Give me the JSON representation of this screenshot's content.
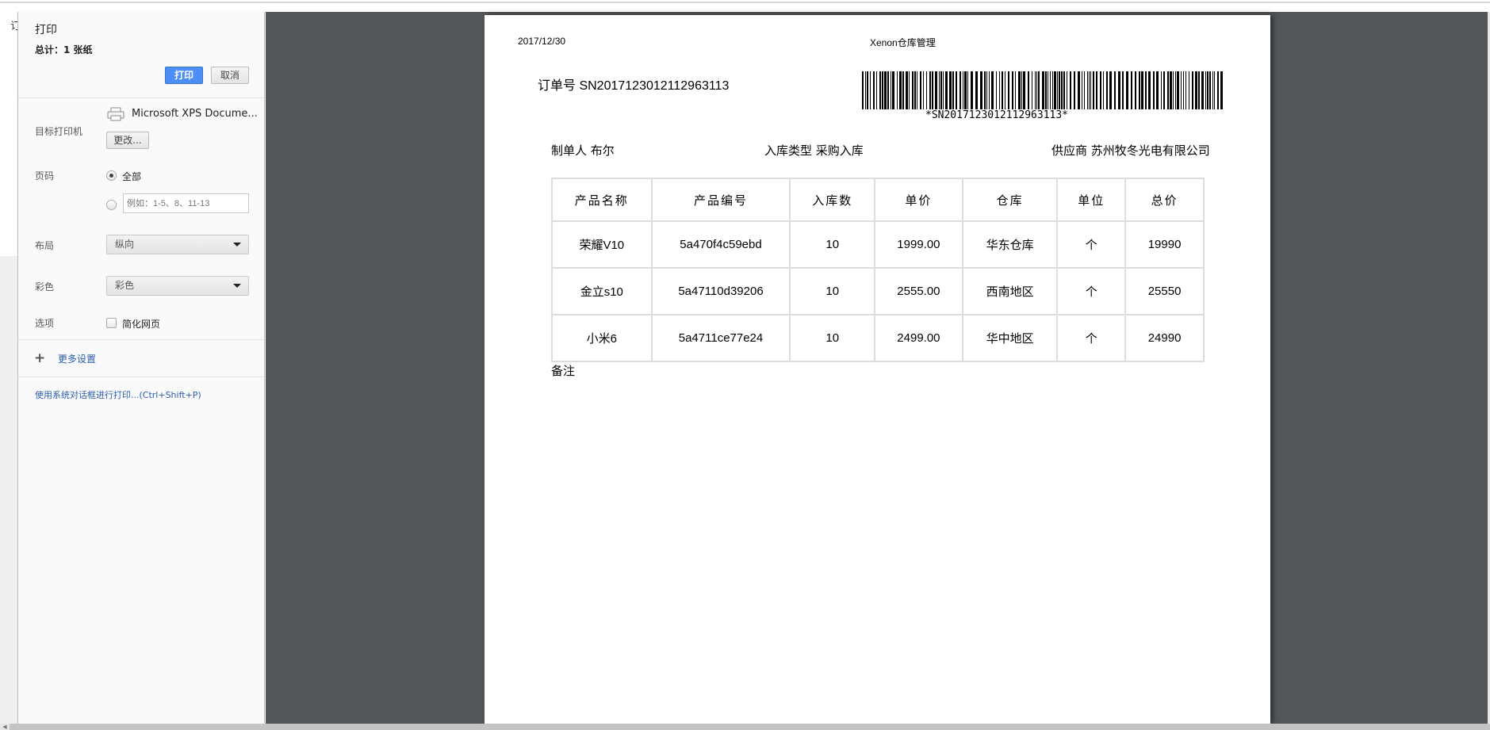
{
  "background": {
    "page_char": "订"
  },
  "sidebar": {
    "title": "打印",
    "total": "总计：1 张纸",
    "print_button": "打印",
    "cancel_button": "取消",
    "destination_label": "目标打印机",
    "printer_name": "Microsoft XPS Docume...",
    "change_button": "更改...",
    "pages_label": "页码",
    "pages_all": "全部",
    "pages_custom_placeholder": "例如：1-5、8、11-13",
    "layout_label": "布局",
    "layout_value": "纵向",
    "color_label": "彩色",
    "color_value": "彩色",
    "options_label": "选项",
    "simplify_label": "简化网页",
    "simplify_checked": false,
    "more_settings": "更多设置",
    "system_dialog_link": "使用系统对话框进行打印...(Ctrl+Shift+P)",
    "accent_color": "#4c8ef5"
  },
  "document": {
    "date": "2017/12/30",
    "header_title": "Xenon仓库管理",
    "order_label": "订单号 SN2017123012112963113",
    "barcode_text": "*SN2017123012112963113*",
    "creator": "制单人 布尔",
    "type": "入库类型 采购入库",
    "supplier": "供应商 苏州牧冬光电有限公司",
    "columns": [
      "产品名称",
      "产品编号",
      "入库数",
      "单价",
      "仓库",
      "单位",
      "总价"
    ],
    "rows": [
      [
        "荣耀V10",
        "5a470f4c59ebd",
        "10",
        "1999.00",
        "华东仓库",
        "个",
        "19990"
      ],
      [
        "金立s10",
        "5a47110d39206",
        "10",
        "2555.00",
        "西南地区",
        "个",
        "25550"
      ],
      [
        "小米6",
        "5a4711ce77e24",
        "10",
        "2499.00",
        "华中地区",
        "个",
        "24990"
      ]
    ],
    "remark_label": "备注"
  }
}
